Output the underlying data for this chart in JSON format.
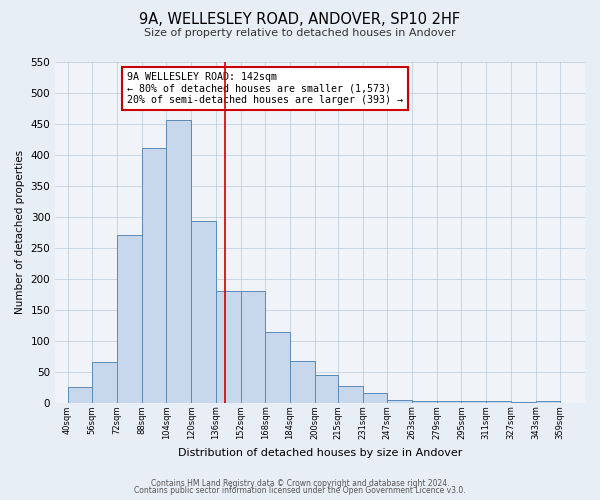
{
  "title": "9A, WELLESLEY ROAD, ANDOVER, SP10 2HF",
  "subtitle": "Size of property relative to detached houses in Andover",
  "xlabel": "Distribution of detached houses by size in Andover",
  "ylabel": "Number of detached properties",
  "bar_left_edges": [
    40,
    56,
    72,
    88,
    104,
    120,
    136,
    152,
    168,
    184,
    200,
    215,
    231,
    247,
    263,
    279,
    295,
    311,
    327,
    343
  ],
  "bar_widths": [
    16,
    16,
    16,
    16,
    16,
    16,
    16,
    16,
    16,
    16,
    15,
    16,
    16,
    16,
    16,
    16,
    16,
    16,
    16,
    16
  ],
  "bar_heights": [
    25,
    65,
    270,
    410,
    455,
    293,
    180,
    180,
    113,
    67,
    45,
    27,
    15,
    4,
    3,
    3,
    3,
    3,
    1,
    3
  ],
  "tick_labels": [
    "40sqm",
    "56sqm",
    "72sqm",
    "88sqm",
    "104sqm",
    "120sqm",
    "136sqm",
    "152sqm",
    "168sqm",
    "184sqm",
    "200sqm",
    "215sqm",
    "231sqm",
    "247sqm",
    "263sqm",
    "279sqm",
    "295sqm",
    "311sqm",
    "327sqm",
    "343sqm",
    "359sqm"
  ],
  "tick_positions": [
    40,
    56,
    72,
    88,
    104,
    120,
    136,
    152,
    168,
    184,
    200,
    215,
    231,
    247,
    263,
    279,
    295,
    311,
    327,
    343,
    359
  ],
  "bar_color": "#c8d8ec",
  "bar_edge_color": "#5a8ab8",
  "vline_x": 142,
  "vline_color": "#cc0000",
  "annotation_line1": "9A WELLESLEY ROAD: 142sqm",
  "annotation_line2": "← 80% of detached houses are smaller (1,573)",
  "annotation_line3": "20% of semi-detached houses are larger (393) →",
  "annotation_box_color": "#cc0000",
  "ylim": [
    0,
    550
  ],
  "yticks": [
    0,
    50,
    100,
    150,
    200,
    250,
    300,
    350,
    400,
    450,
    500,
    550
  ],
  "bg_color": "#e8eef5",
  "plot_bg_color": "#f0f4f8",
  "footer_line1": "Contains HM Land Registry data © Crown copyright and database right 2024.",
  "footer_line2": "Contains public sector information licensed under the Open Government Licence v3.0."
}
